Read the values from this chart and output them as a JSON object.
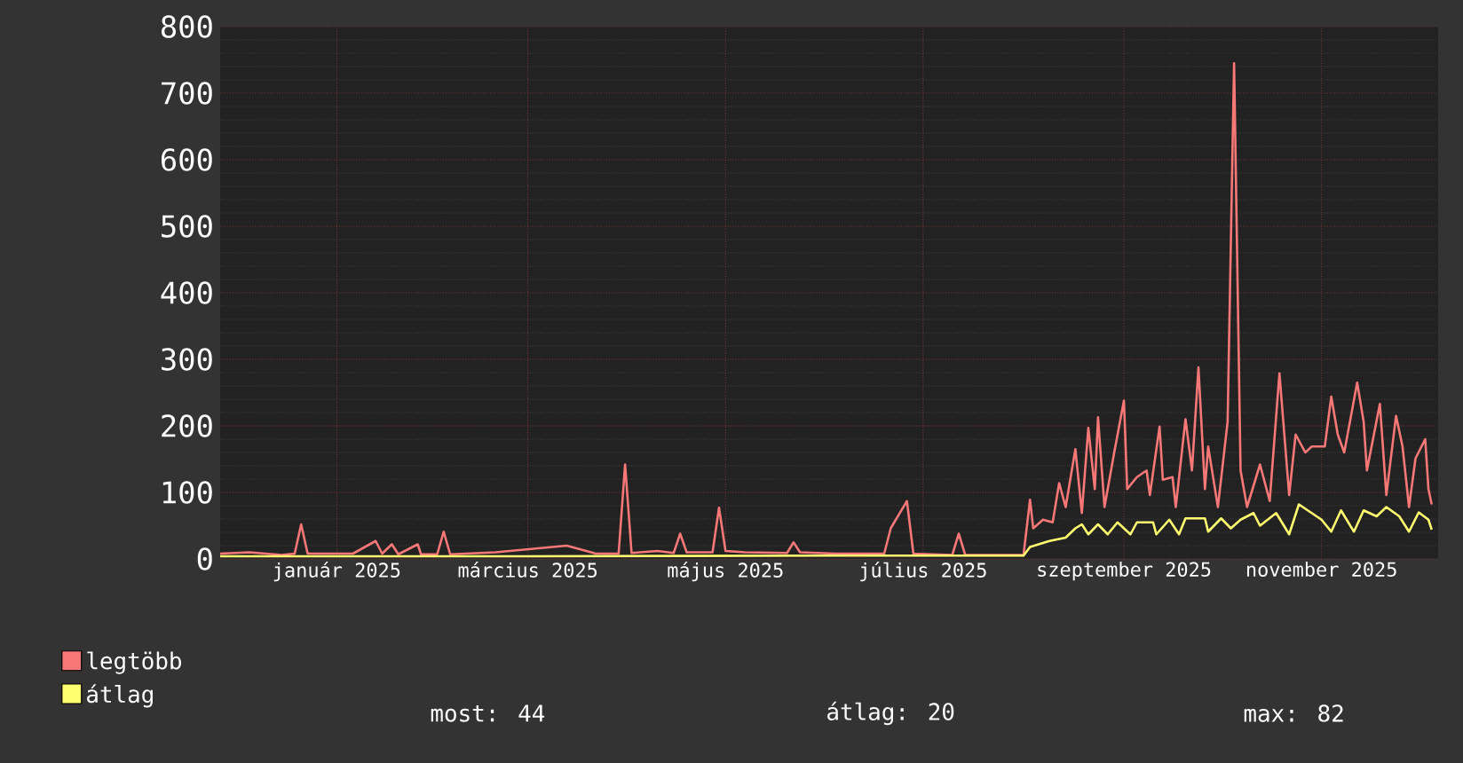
{
  "chart_data": {
    "type": "line",
    "legend": "bottom left",
    "grid": true,
    "xlim": [
      "2024-11-26",
      "2025-12-07"
    ],
    "ylim": [
      0,
      800
    ],
    "yticks": [
      0,
      100,
      200,
      300,
      400,
      500,
      600,
      700,
      800
    ],
    "xticks": [
      {
        "value": "2025-01-01",
        "label": "január 2025"
      },
      {
        "value": "2025-03-01",
        "label": "március 2025"
      },
      {
        "value": "2025-05-01",
        "label": "május 2025"
      },
      {
        "value": "2025-07-01",
        "label": "július 2025"
      },
      {
        "value": "2025-09-01",
        "label": "szeptember 2025"
      },
      {
        "value": "2025-11-01",
        "label": "november 2025"
      }
    ],
    "annotations": [
      "most: 44",
      "átlag: 20",
      "max: 82"
    ],
    "series": [
      {
        "name": "legtöbb",
        "color": "#f87878",
        "x": [
          "2024-11-26",
          "2024-12-05",
          "2024-12-15",
          "2024-12-19",
          "2024-12-21",
          "2024-12-23",
          "2025-01-06",
          "2025-01-13",
          "2025-01-15",
          "2025-01-18",
          "2025-01-20",
          "2025-01-26",
          "2025-01-27",
          "2025-02-01",
          "2025-02-03",
          "2025-02-05",
          "2025-02-19",
          "2025-03-13",
          "2025-03-22",
          "2025-03-29",
          "2025-03-31",
          "2025-04-02",
          "2025-04-10",
          "2025-04-15",
          "2025-04-17",
          "2025-04-19",
          "2025-04-27",
          "2025-04-29",
          "2025-05-01",
          "2025-05-07",
          "2025-05-20",
          "2025-05-22",
          "2025-05-24",
          "2025-06-04",
          "2025-06-19",
          "2025-06-21",
          "2025-06-26",
          "2025-06-28",
          "2025-07-10",
          "2025-07-12",
          "2025-07-14",
          "2025-07-23",
          "2025-08-01",
          "2025-08-03",
          "2025-08-04",
          "2025-08-07",
          "2025-08-10",
          "2025-08-12",
          "2025-08-14",
          "2025-08-17",
          "2025-08-19",
          "2025-08-21",
          "2025-08-23",
          "2025-08-24",
          "2025-08-26",
          "2025-08-29",
          "2025-09-01",
          "2025-09-02",
          "2025-09-05",
          "2025-09-08",
          "2025-09-09",
          "2025-09-12",
          "2025-09-13",
          "2025-09-16",
          "2025-09-17",
          "2025-09-20",
          "2025-09-22",
          "2025-09-24",
          "2025-09-26",
          "2025-09-27",
          "2025-09-30",
          "2025-10-03",
          "2025-10-05",
          "2025-10-07",
          "2025-10-09",
          "2025-10-13",
          "2025-10-16",
          "2025-10-19",
          "2025-10-22",
          "2025-10-24",
          "2025-10-27",
          "2025-10-29",
          "2025-11-02",
          "2025-11-04",
          "2025-11-06",
          "2025-11-08",
          "2025-11-12",
          "2025-11-14",
          "2025-11-15",
          "2025-11-19",
          "2025-11-21",
          "2025-11-24",
          "2025-11-26",
          "2025-11-28",
          "2025-11-30",
          "2025-12-03",
          "2025-12-04",
          "2025-12-05"
        ],
        "values": [
          8,
          10,
          6,
          8,
          52,
          8,
          8,
          27,
          8,
          22,
          7,
          22,
          7,
          7,
          41,
          7,
          10,
          20,
          8,
          8,
          142,
          9,
          12,
          9,
          38,
          10,
          10,
          77,
          12,
          10,
          9,
          25,
          10,
          8,
          8,
          46,
          87,
          8,
          6,
          38,
          6,
          6,
          6,
          89,
          46,
          59,
          55,
          114,
          78,
          165,
          69,
          197,
          105,
          213,
          78,
          160,
          238,
          105,
          123,
          133,
          96,
          199,
          119,
          123,
          78,
          210,
          133,
          288,
          105,
          169,
          78,
          206,
          745,
          133,
          78,
          142,
          87,
          279,
          96,
          187,
          160,
          169,
          169,
          244,
          187,
          160,
          265,
          206,
          133,
          233,
          96,
          215,
          169,
          78,
          151,
          180,
          105,
          82
        ]
      },
      {
        "name": "átlag",
        "color": "#ffff70",
        "x": [
          "2024-11-26",
          "2025-03-01",
          "2025-06-01",
          "2025-08-01",
          "2025-08-03",
          "2025-08-09",
          "2025-08-14",
          "2025-08-17",
          "2025-08-19",
          "2025-08-21",
          "2025-08-24",
          "2025-08-27",
          "2025-08-30",
          "2025-09-03",
          "2025-09-05",
          "2025-09-10",
          "2025-09-11",
          "2025-09-15",
          "2025-09-18",
          "2025-09-20",
          "2025-09-26",
          "2025-09-27",
          "2025-10-01",
          "2025-10-04",
          "2025-10-07",
          "2025-10-11",
          "2025-10-13",
          "2025-10-18",
          "2025-10-22",
          "2025-10-25",
          "2025-11-01",
          "2025-11-04",
          "2025-11-07",
          "2025-11-11",
          "2025-11-14",
          "2025-11-18",
          "2025-11-21",
          "2025-11-25",
          "2025-11-28",
          "2025-12-01",
          "2025-12-04",
          "2025-12-05"
        ],
        "values": [
          4,
          4,
          5,
          5,
          18,
          27,
          32,
          46,
          52,
          37,
          52,
          37,
          55,
          37,
          55,
          55,
          37,
          59,
          37,
          61,
          61,
          41,
          61,
          46,
          59,
          69,
          50,
          69,
          37,
          82,
          59,
          41,
          73,
          41,
          73,
          64,
          78,
          64,
          41,
          70,
          59,
          44
        ]
      }
    ]
  }
}
